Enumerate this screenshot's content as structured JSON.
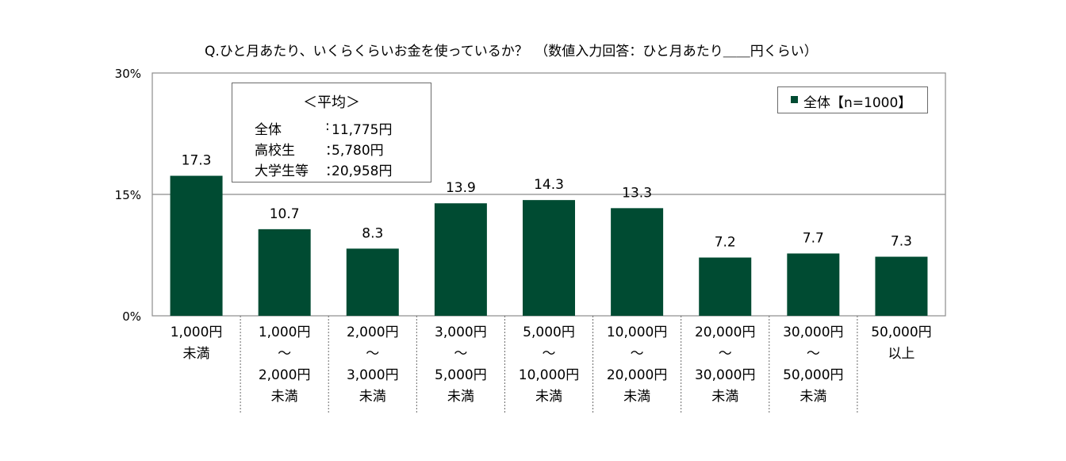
{
  "chart_data": {
    "type": "bar",
    "title": "Q.ひと月あたり、いくらくらいお金を使っているか？　（数値入力回答：ひと月あたり＿＿円くらい）",
    "ylim": [
      0,
      30
    ],
    "yticks": [
      {
        "value": 30,
        "label": "30%"
      },
      {
        "value": 15,
        "label": "15%"
      },
      {
        "value": 0,
        "label": "0%"
      }
    ],
    "grid": "horizontal at 15%",
    "categories": [
      [
        "1,000円",
        "未満"
      ],
      [
        "1,000円",
        "～",
        "2,000円",
        "未満"
      ],
      [
        "2,000円",
        "～",
        "3,000円",
        "未満"
      ],
      [
        "3,000円",
        "～",
        "5,000円",
        "未満"
      ],
      [
        "5,000円",
        "～",
        "10,000円",
        "未満"
      ],
      [
        "10,000円",
        "～",
        "20,000円",
        "未満"
      ],
      [
        "20,000円",
        "～",
        "30,000円",
        "未満"
      ],
      [
        "30,000円",
        "～",
        "50,000円",
        "未満"
      ],
      [
        "50,000円",
        "以上"
      ]
    ],
    "series": [
      {
        "name": "全体【n=1000】",
        "values": [
          17.3,
          10.7,
          8.3,
          13.9,
          14.3,
          13.3,
          7.2,
          7.7,
          7.3
        ],
        "color": "#004b32"
      }
    ],
    "value_labels": [
      "17.3",
      "10.7",
      "8.3",
      "13.9",
      "14.3",
      "13.3",
      "7.2",
      "7.7",
      "7.3"
    ],
    "legend": {
      "label": "全体【n=1000】",
      "position": "top-right"
    },
    "annotation": {
      "title": "＜平均＞",
      "rows": [
        {
          "label": "全体",
          "colon": ":",
          "value": "11,775円"
        },
        {
          "label": "高校生",
          "colon": "：",
          "value": "5,780円"
        },
        {
          "label": "大学生等",
          "colon": "：",
          "value": "20,958円"
        }
      ]
    }
  },
  "colors": {
    "bar": "#004b32",
    "axis": "#7a7a7a",
    "border": "#8c8c8c"
  }
}
